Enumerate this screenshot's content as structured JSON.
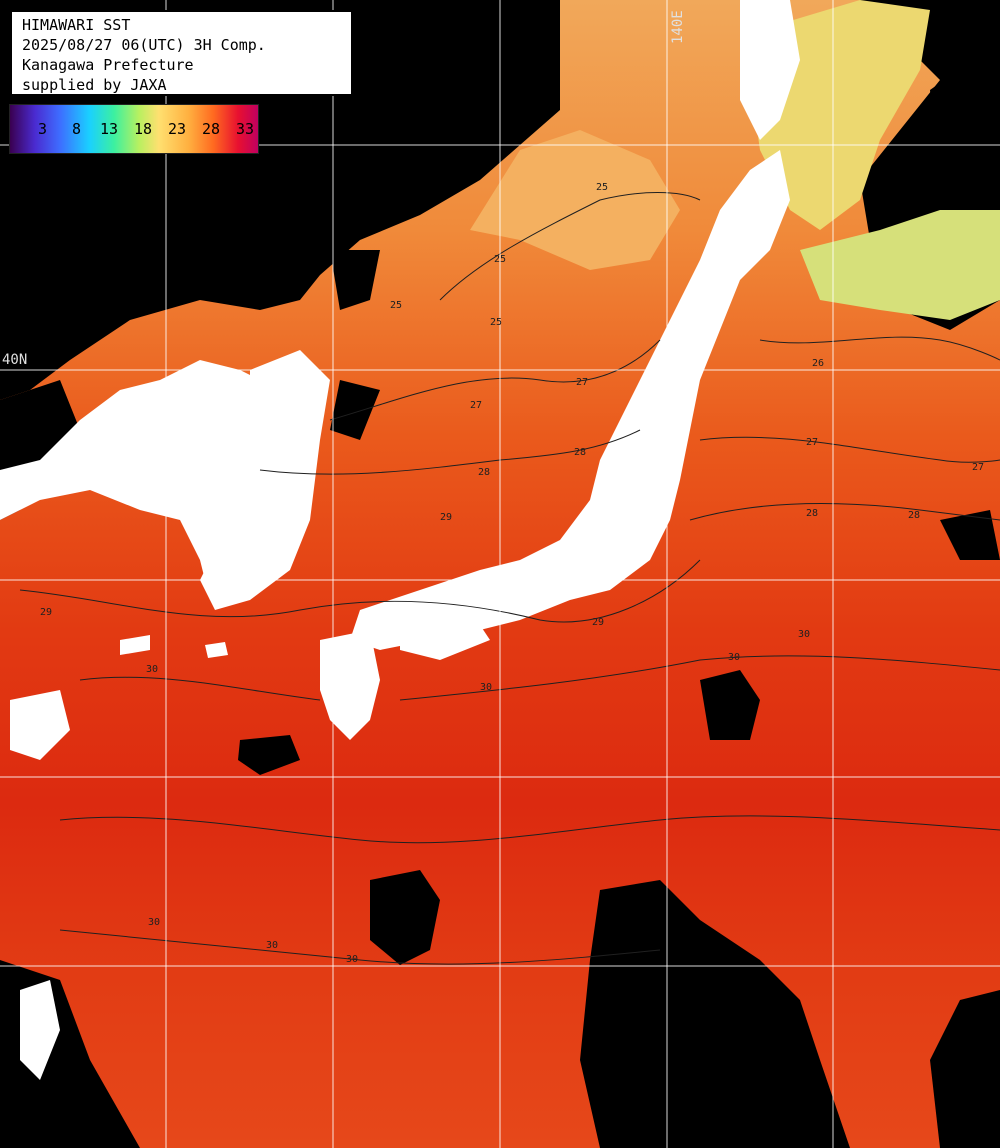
{
  "info": {
    "title": "HIMAWARI SST",
    "datetime": "2025/08/27 06(UTC) 3H Comp.",
    "region": "Kanagawa Prefecture",
    "credit": "supplied by JAXA"
  },
  "legend": {
    "ticks": [
      "3",
      "8",
      "13",
      "18",
      "23",
      "28",
      "33"
    ],
    "colors": [
      "#3a0050",
      "#3e6cff",
      "#1ad0ff",
      "#3cf0a0",
      "#ffe070",
      "#ff6a20",
      "#c00060"
    ]
  },
  "axes": {
    "longitude_label": "140E",
    "latitude_label": "40N"
  },
  "contour_labels": [
    "25",
    "25",
    "25",
    "25",
    "26",
    "27",
    "27",
    "27",
    "27",
    "28",
    "28",
    "28",
    "28",
    "29",
    "29",
    "29",
    "30",
    "30",
    "30",
    "30",
    "30",
    "30",
    "30"
  ],
  "colors": {
    "land": "#ffffff",
    "no_data": "#000000",
    "grid": "#ffffff"
  }
}
